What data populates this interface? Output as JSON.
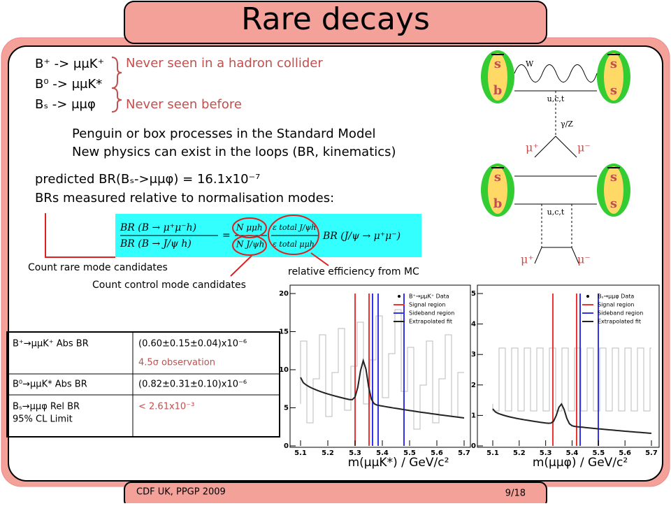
{
  "title": "Rare decays",
  "decays": [
    "B⁺ -> μμK⁺",
    "B⁰ -> μμK*",
    "Bₛ -> μμφ"
  ],
  "notes": [
    "Never seen in a hadron collider",
    "Never seen before"
  ],
  "physics": [
    "Penguin or box processes in the Standard Model",
    "New physics can exist in the loops (BR, kinematics)"
  ],
  "prediction": "predicted BR(Bₛ->μμφ) = 16.1x10⁻⁷",
  "normalisation": "BRs measured relative to normalisation modes:",
  "formula": {
    "numerator": "BR (B → μ⁺μ⁻h)",
    "denominator": "BR (B → J/ψ h)",
    "n_rare": "N μμh",
    "n_control": "N J/ψh",
    "eff_top": "ε total J/ψh",
    "eff_bottom": "ε total μμh",
    "norm": "BR (J/ψ → μ⁺μ⁻)"
  },
  "annotations": [
    "Count rare mode candidates",
    "Count control mode candidates",
    "relative efficiency from MC"
  ],
  "diagrams": {
    "top": {
      "quarks": [
        "s",
        "b",
        "s",
        "s"
      ],
      "boson": "W",
      "loop": "u,c,t",
      "propagator": "γ/Z",
      "leptons": [
        "μ⁺",
        "μ⁻"
      ]
    },
    "bottom": {
      "quarks": [
        "s",
        "b",
        "s",
        "s"
      ],
      "loop": "u,c,t",
      "leptons": [
        "μ⁺",
        "μ⁻"
      ]
    }
  },
  "table": {
    "rows": [
      {
        "label": "B⁺→μμK⁺ Abs BR",
        "value": "(0.60±0.15±0.04)x10⁻⁶",
        "note": "4.5σ observation"
      },
      {
        "label": "B⁰→μμK* Abs BR",
        "value": "(0.82±0.31±0.10)x10⁻⁶"
      },
      {
        "label": "Bₛ→μμφ Rel BR",
        "label2": "95% CL Limit",
        "value": "< 2.61x10⁻³"
      }
    ]
  },
  "plots": [
    {
      "legend": [
        "B⁺→μμK⁺ Data",
        "Signal region",
        "Sideband region",
        "Extrapolated fit"
      ],
      "xticks": [
        "5.1",
        "5.2",
        "5.3",
        "5.4",
        "5.5",
        "5.6",
        "5.7"
      ],
      "yticks": [
        "0",
        "5",
        "10",
        "15",
        "20"
      ],
      "xlabel": "m(μμK*) / GeV/c²"
    },
    {
      "legend": [
        "Bₛ→μμφ Data",
        "Signal region",
        "Sideband region",
        "Extrapolated fit"
      ],
      "xticks": [
        "5.1",
        "5.2",
        "5.3",
        "5.4",
        "5.5",
        "5.6",
        "5.7"
      ],
      "yticks": [
        "0",
        "1",
        "2",
        "3",
        "4",
        "5"
      ],
      "xlabel": "m(μμφ) / GeV/c²"
    }
  ],
  "footer": {
    "left": "CDF UK, PPGP 2009",
    "right": "9/18"
  }
}
